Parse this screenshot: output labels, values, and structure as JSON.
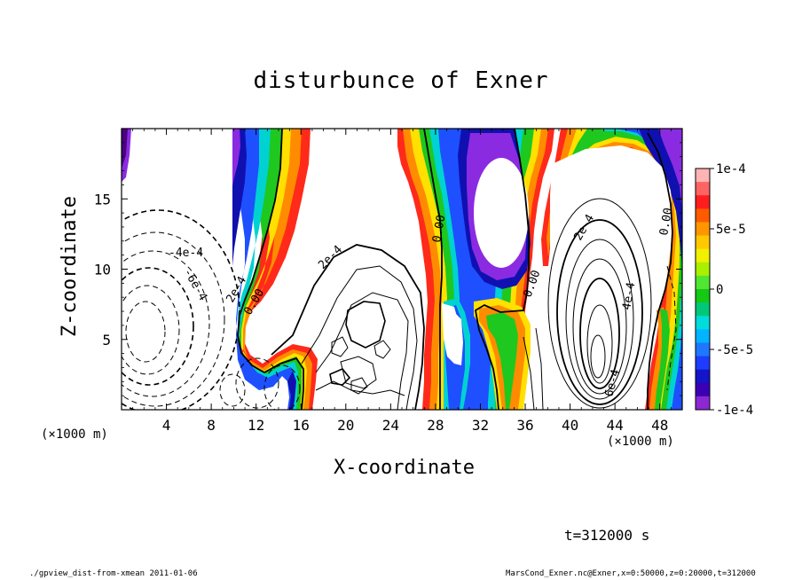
{
  "title": "disturbunce of Exner",
  "chart_data": {
    "type": "heatmap",
    "title": "disturbunce of Exner",
    "xlabel": "X-coordinate",
    "ylabel": "Z-coordinate",
    "x_unit": "(×1000 m)",
    "z_unit": "(×1000 m)",
    "xlim": [
      0,
      50
    ],
    "ylim": [
      0,
      20
    ],
    "x_ticks": [
      4,
      8,
      12,
      16,
      20,
      24,
      28,
      32,
      36,
      40,
      44,
      48
    ],
    "y_ticks": [
      5,
      10,
      15
    ],
    "colorbar": {
      "range": [
        -0.0001,
        0.0001
      ],
      "tick_labels": [
        "1e-4",
        "5e-5",
        "0",
        "-5e-5",
        "-1e-4"
      ],
      "tick_values": [
        0.0001,
        5e-05,
        0,
        -5e-05,
        -0.0001
      ]
    },
    "contour_labels": [
      "-4e-4",
      "-6e-4",
      "2e-4",
      "0.00",
      "2e-4",
      "0.00",
      "0.00",
      "2e-4",
      "0.00",
      "4e-4",
      "6e-4"
    ],
    "time": "t=312000 s"
  },
  "footer": {
    "left": "./gpview_dist-from-xmean   2011-01-06",
    "right": "MarsCond_Exner.nc@Exner,x=0:50000,z=0:20000,t=312000"
  }
}
